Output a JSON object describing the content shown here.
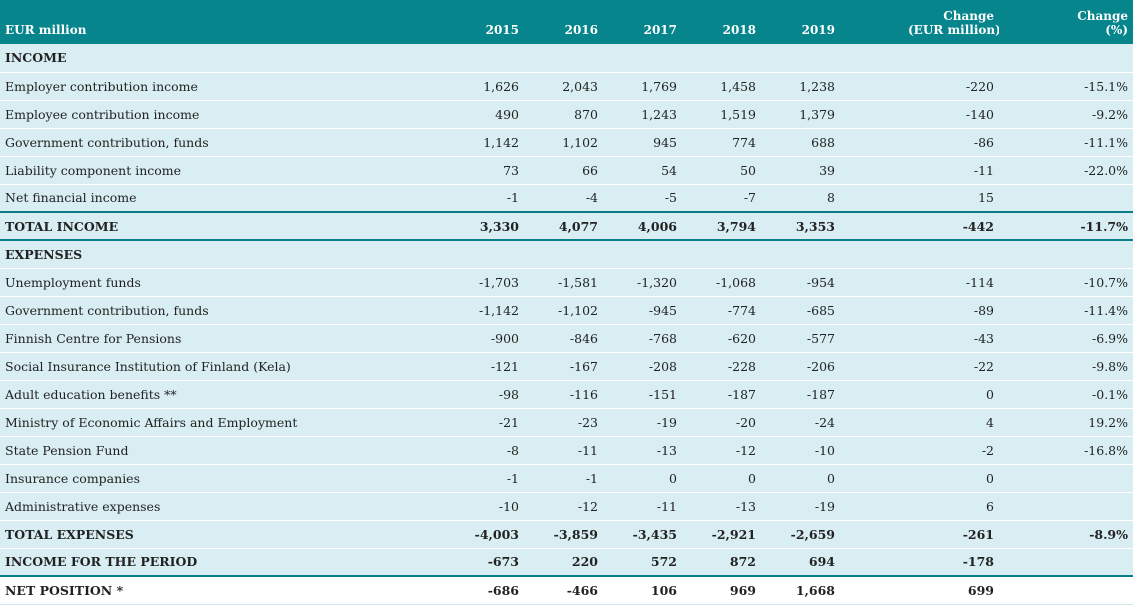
{
  "header": {
    "label": "EUR million",
    "years": [
      "2015",
      "2016",
      "2017",
      "2018",
      "2019"
    ],
    "change_abs_line1": "Change",
    "change_abs_line2": "(EUR million)",
    "change_pct_line1": "Change",
    "change_pct_line2": "(%)"
  },
  "rows": [
    {
      "label": "INCOME",
      "values": [
        "",
        "",
        "",
        "",
        ""
      ],
      "change": "",
      "pct": "",
      "bold": true,
      "section": true
    },
    {
      "label": "Employer contribution income",
      "values": [
        "1,626",
        "2,043",
        "1,769",
        "1,458",
        "1,238"
      ],
      "change": "-220",
      "pct": "-15.1%"
    },
    {
      "label": "Employee contribution income",
      "values": [
        "490",
        "870",
        "1,243",
        "1,519",
        "1,379"
      ],
      "change": "-140",
      "pct": "-9.2%"
    },
    {
      "label": "Government contribution, funds",
      "values": [
        "1,142",
        "1,102",
        "945",
        "774",
        "688"
      ],
      "change": "-86",
      "pct": "-11.1%"
    },
    {
      "label": "Liability component income",
      "values": [
        "73",
        "66",
        "54",
        "50",
        "39"
      ],
      "change": "-11",
      "pct": "-22.0%"
    },
    {
      "label": "Net financial income",
      "values": [
        "-1",
        "-4",
        "-5",
        "-7",
        "8"
      ],
      "change": "15",
      "pct": ""
    },
    {
      "label": "TOTAL INCOME",
      "values": [
        "3,330",
        "4,077",
        "4,006",
        "3,794",
        "3,353"
      ],
      "change": "-442",
      "pct": "-11.7%",
      "bold": true,
      "total": true
    },
    {
      "label": "EXPENSES",
      "values": [
        "",
        "",
        "",
        "",
        ""
      ],
      "change": "",
      "pct": "",
      "bold": true,
      "section": true
    },
    {
      "label": "Unemployment funds",
      "values": [
        "-1,703",
        "-1,581",
        "-1,320",
        "-1,068",
        "-954"
      ],
      "change": "-114",
      "pct": "-10.7%"
    },
    {
      "label": "Government contribution, funds",
      "values": [
        "-1,142",
        "-1,102",
        "-945",
        "-774",
        "-685"
      ],
      "change": "-89",
      "pct": "-11.4%"
    },
    {
      "label": "Finnish Centre for Pensions",
      "values": [
        "-900",
        "-846",
        "-768",
        "-620",
        "-577"
      ],
      "change": "-43",
      "pct": "-6.9%"
    },
    {
      "label": "Social Insurance Institution of Finland (Kela)",
      "values": [
        "-121",
        "-167",
        "-208",
        "-228",
        "-206"
      ],
      "change": "-22",
      "pct": "-9.8%"
    },
    {
      "label": "Adult education benefits **",
      "values": [
        "-98",
        "-116",
        "-151",
        "-187",
        "-187"
      ],
      "change": "0",
      "pct": "-0.1%"
    },
    {
      "label": "Ministry of Economic Affairs and Employment",
      "values": [
        "-21",
        "-23",
        "-19",
        "-20",
        "-24"
      ],
      "change": "4",
      "pct": "19.2%"
    },
    {
      "label": "State Pension Fund",
      "values": [
        "-8",
        "-11",
        "-13",
        "-12",
        "-10"
      ],
      "change": "-2",
      "pct": "-16.8%"
    },
    {
      "label": "Insurance companies",
      "values": [
        "-1",
        "-1",
        "0",
        "0",
        "0"
      ],
      "change": "0",
      "pct": ""
    },
    {
      "label": "Administrative expenses",
      "values": [
        "-10",
        "-12",
        "-11",
        "-13",
        "-19"
      ],
      "change": "6",
      "pct": ""
    },
    {
      "label": "TOTAL EXPENSES",
      "values": [
        "-4,003",
        "-3,859",
        "-3,435",
        "-2,921",
        "-2,659"
      ],
      "change": "-261",
      "pct": "-8.9%",
      "bold": true
    },
    {
      "label": "INCOME FOR THE PERIOD",
      "values": [
        "-673",
        "220",
        "572",
        "872",
        "694"
      ],
      "change": "-178",
      "pct": "",
      "bold": true,
      "rule_bottom": true
    },
    {
      "label": "NET POSITION *",
      "values": [
        "-686",
        "-466",
        "106",
        "969",
        "1,668"
      ],
      "change": "699",
      "pct": "",
      "bold": true,
      "plain": true
    }
  ]
}
